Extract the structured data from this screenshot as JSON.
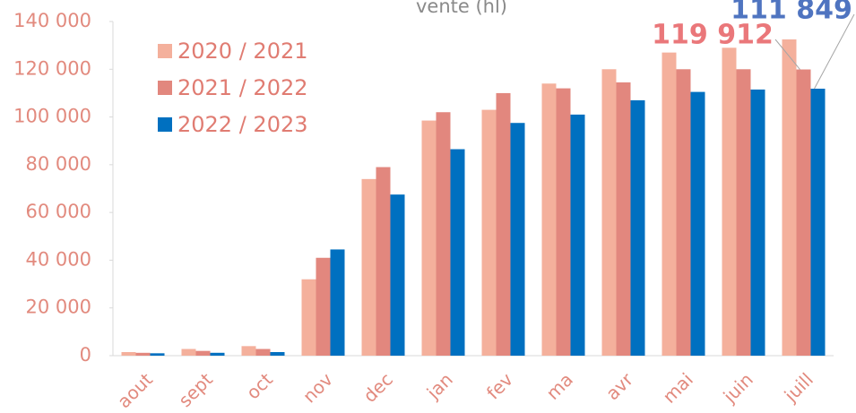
{
  "chart_data": {
    "type": "bar",
    "title": "vente (hl)",
    "categories": [
      "aout",
      "sept",
      "oct",
      "nov",
      "dec",
      "jan",
      "fev",
      "ma",
      "avr",
      "mai",
      "juin",
      "juill"
    ],
    "series": [
      {
        "name": "2020 / 2021",
        "color": "#f4b09c",
        "values": [
          1500,
          2800,
          4000,
          32000,
          74000,
          98500,
          103000,
          114000,
          120000,
          127000,
          129000,
          132500
        ]
      },
      {
        "name": "2021 / 2022",
        "color": "#e2877e",
        "values": [
          1200,
          2000,
          2800,
          41000,
          79000,
          102000,
          110000,
          112000,
          114500,
          120000,
          120000,
          119912
        ],
        "value_labels": [
          null,
          null,
          null,
          null,
          null,
          null,
          null,
          null,
          null,
          null,
          null,
          "119 912"
        ],
        "label_color": "#ea777a"
      },
      {
        "name": "2022 / 2023",
        "color": "#0070c0",
        "values": [
          1000,
          1200,
          1500,
          44500,
          67500,
          86500,
          97500,
          101000,
          107000,
          110500,
          111500,
          111849
        ],
        "value_labels": [
          null,
          null,
          null,
          null,
          null,
          null,
          null,
          null,
          null,
          null,
          null,
          "111 849"
        ],
        "label_color": "#4f74c0"
      }
    ],
    "ylim": [
      0,
      140000
    ],
    "yticks": [
      0,
      {
        "value": 20000,
        "label": "20 000"
      },
      {
        "value": 40000,
        "label": "40 000"
      },
      {
        "value": 60000,
        "label": "60 000"
      },
      {
        "value": 80000,
        "label": "80 000"
      },
      {
        "value": 100000,
        "label": "100 000"
      },
      {
        "value": 120000,
        "label": "120 000"
      },
      {
        "value": 140000,
        "label": "140 000"
      }
    ],
    "legend": "upper-left"
  }
}
